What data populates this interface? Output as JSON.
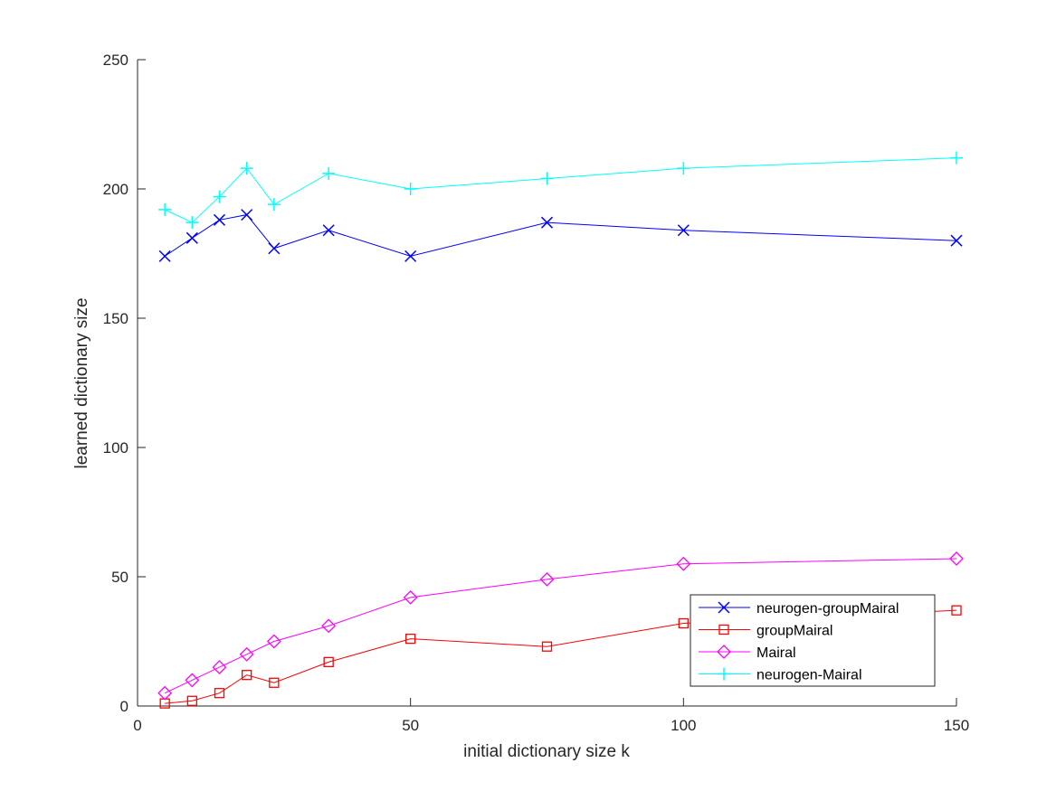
{
  "chart_data": {
    "type": "line",
    "title": "",
    "xlabel": "initial dictionary size k",
    "ylabel": "learned dictionary size",
    "xlim": [
      0,
      150
    ],
    "ylim": [
      0,
      250
    ],
    "xticks": [
      0,
      50,
      100,
      150
    ],
    "yticks": [
      0,
      50,
      100,
      150,
      200,
      250
    ],
    "grid": false,
    "legend_position": "lower-right",
    "x": [
      5,
      10,
      15,
      20,
      25,
      35,
      50,
      75,
      100,
      150
    ],
    "series": [
      {
        "name": "neurogen-groupMairal",
        "color": "#0000ff",
        "marker": "x",
        "values": [
          174,
          181,
          188,
          190,
          177,
          184,
          174,
          187,
          184,
          180
        ]
      },
      {
        "name": "groupMairal",
        "color": "#ff0000",
        "marker": "square",
        "values": [
          1,
          2,
          5,
          12,
          9,
          17,
          26,
          23,
          32,
          37
        ]
      },
      {
        "name": "Mairal",
        "color": "#ff00ff",
        "marker": "diamond",
        "values": [
          5,
          10,
          15,
          20,
          25,
          31,
          42,
          49,
          55,
          57
        ]
      },
      {
        "name": "neurogen-Mairal",
        "color": "#00ffff",
        "marker": "plus",
        "values": [
          192,
          187,
          197,
          208,
          194,
          206,
          200,
          204,
          208,
          212
        ]
      }
    ]
  }
}
